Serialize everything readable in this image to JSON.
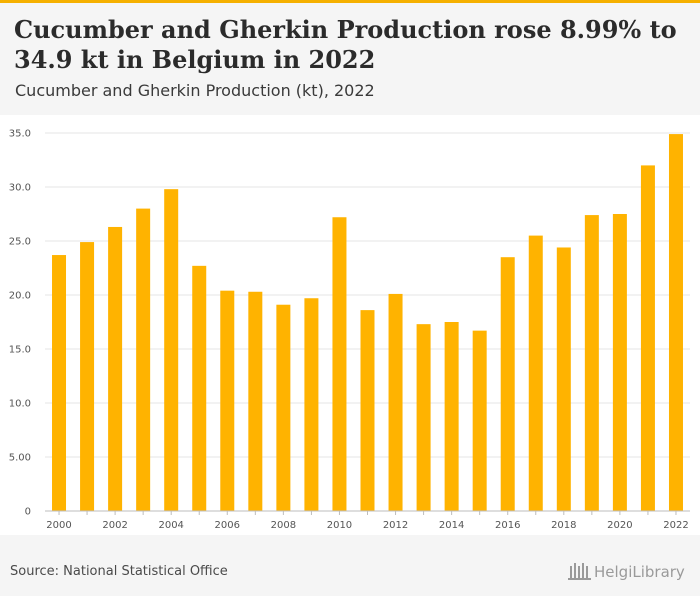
{
  "header": {
    "title": "Cucumber and Gherkin Production rose 8.99% to 34.9 kt in Belgium in 2022",
    "subtitle": "Cucumber and Gherkin Production (kt), 2022"
  },
  "footer": {
    "source": "Source: National Statistical Office",
    "logo_text": "HelgiLibrary"
  },
  "colors": {
    "accent": "#f5b000",
    "bar": "#ffb300",
    "header_bg": "#f5f5f5"
  },
  "chart_data": {
    "type": "bar",
    "categories": [
      "2000",
      "2001",
      "2002",
      "2003",
      "2004",
      "2005",
      "2006",
      "2007",
      "2008",
      "2009",
      "2010",
      "2011",
      "2012",
      "2013",
      "2014",
      "2015",
      "2016",
      "2017",
      "2018",
      "2019",
      "2020",
      "2021",
      "2022"
    ],
    "values": [
      23.7,
      24.9,
      26.3,
      28.0,
      29.8,
      22.7,
      20.4,
      20.3,
      19.1,
      19.7,
      27.2,
      18.6,
      20.1,
      17.3,
      17.5,
      16.7,
      23.5,
      25.5,
      24.4,
      27.4,
      27.5,
      32.0,
      34.9
    ],
    "x_tick_labels": [
      "2000",
      "2002",
      "2004",
      "2006",
      "2008",
      "2010",
      "2012",
      "2014",
      "2016",
      "2018",
      "2020",
      "2022"
    ],
    "y_tick_labels": [
      "0",
      "5.00",
      "10.0",
      "15.0",
      "20.0",
      "25.0",
      "30.0",
      "35.0"
    ],
    "ylim": [
      0,
      35
    ],
    "grid": true,
    "legend": "none",
    "xlabel": "",
    "ylabel": ""
  }
}
